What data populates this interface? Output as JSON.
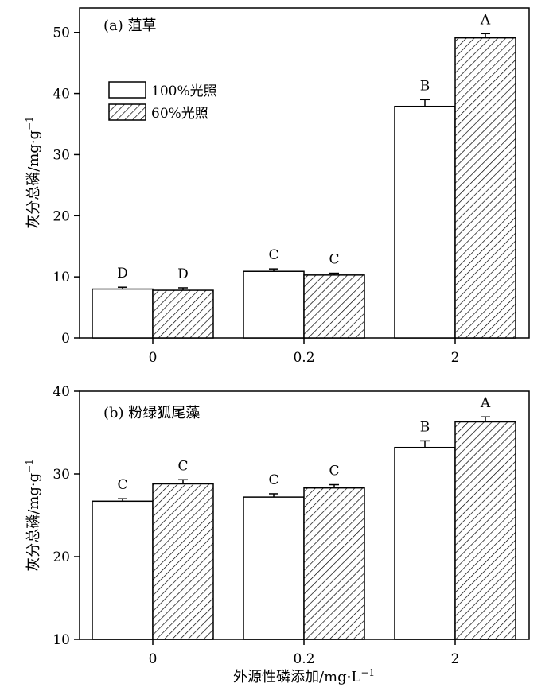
{
  "figure": {
    "xlabel": "外源性磷添加/mg·L",
    "xlabel_sup": "−1"
  },
  "legend": {
    "items": [
      {
        "label": "100%光照",
        "pattern": "white"
      },
      {
        "label": "60%光照",
        "pattern": "hatch"
      }
    ]
  },
  "chart_data": [
    {
      "type": "bar",
      "title": "(a) 菹草",
      "ylabel": "灰分总磷/mg·g",
      "ylabel_sup": "−1",
      "ylim": [
        0,
        54
      ],
      "yticks": [
        0,
        10,
        20,
        30,
        40,
        50
      ],
      "categories": [
        "0",
        "0.2",
        "2"
      ],
      "series": [
        {
          "name": "100%光照",
          "values": [
            8.0,
            10.9,
            37.9
          ],
          "errors": [
            0.3,
            0.4,
            1.1
          ],
          "letters": [
            "D",
            "C",
            "B"
          ]
        },
        {
          "name": "60%光照",
          "values": [
            7.8,
            10.3,
            49.1
          ],
          "errors": [
            0.4,
            0.3,
            0.7
          ],
          "letters": [
            "D",
            "C",
            "A"
          ]
        }
      ],
      "legend": "upper-left",
      "grid": false
    },
    {
      "type": "bar",
      "title": "(b) 粉绿狐尾藻",
      "ylabel": "灰分总磷/mg·g",
      "ylabel_sup": "−1",
      "ylim": [
        10,
        40
      ],
      "yticks": [
        10,
        20,
        30,
        40
      ],
      "categories": [
        "0",
        "0.2",
        "2"
      ],
      "series": [
        {
          "name": "100%光照",
          "values": [
            26.7,
            27.2,
            33.2
          ],
          "errors": [
            0.3,
            0.4,
            0.8
          ],
          "letters": [
            "C",
            "C",
            "B"
          ]
        },
        {
          "name": "60%光照",
          "values": [
            28.8,
            28.3,
            36.3
          ],
          "errors": [
            0.5,
            0.4,
            0.6
          ],
          "letters": [
            "C",
            "C",
            "A"
          ]
        }
      ],
      "grid": false
    }
  ]
}
